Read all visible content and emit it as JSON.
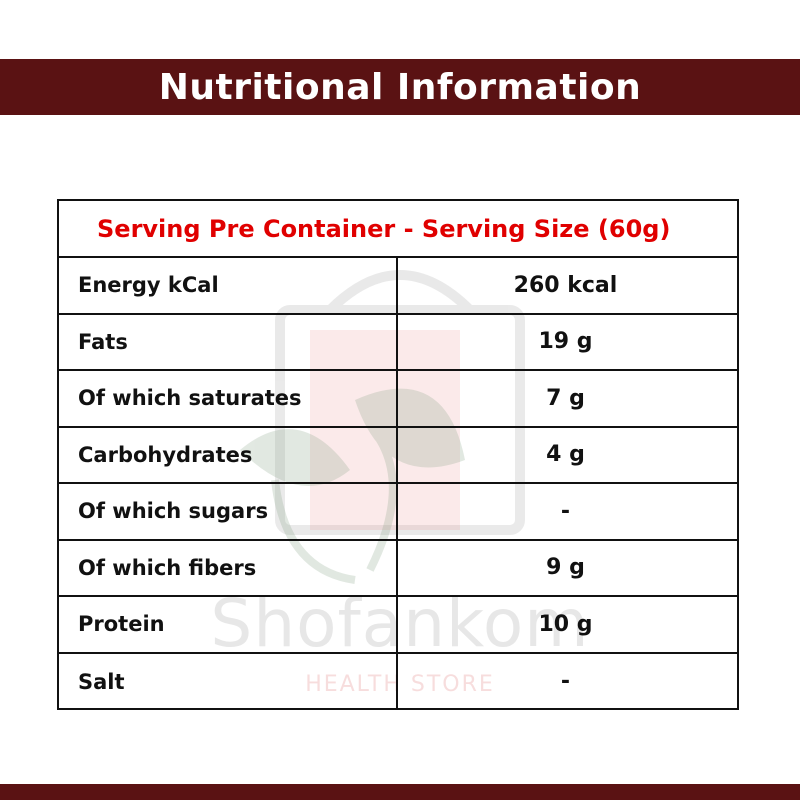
{
  "header": {
    "title": "Nutritional Information"
  },
  "table": {
    "serving_header": "Serving Pre Container - Serving Size (60g)",
    "rows": [
      {
        "label": "Energy kCal",
        "value": "260 kcal"
      },
      {
        "label": "Fats",
        "value": "19 g"
      },
      {
        "label": "Of which saturates",
        "value": "7 g"
      },
      {
        "label": "Carbohydrates",
        "value": "4 g"
      },
      {
        "label": "Of which sugars",
        "value": "-"
      },
      {
        "label": "Of which fibers",
        "value": "9 g"
      },
      {
        "label": "Protein",
        "value": "10 g"
      },
      {
        "label": "Salt",
        "value": "-"
      }
    ]
  },
  "watermark": {
    "brand": "Shofankom",
    "tagline": "HEALTH STORE"
  },
  "colors": {
    "banner": "#5a1213",
    "serving_header_text": "#e00000",
    "text": "#111111"
  }
}
